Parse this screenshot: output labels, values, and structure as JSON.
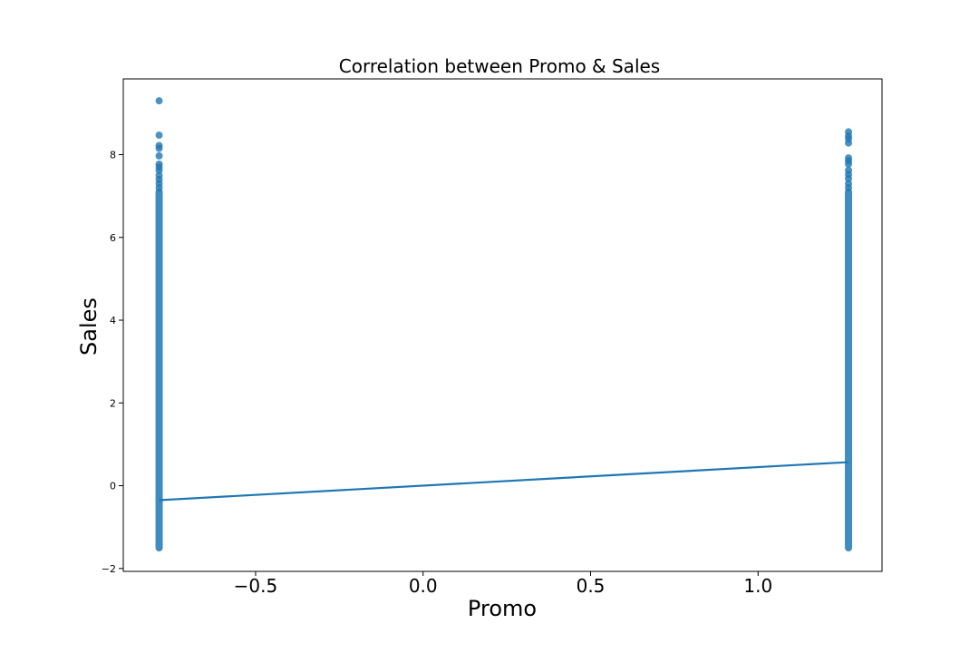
{
  "chart_data": {
    "type": "scatter",
    "title": "Correlation between Promo & Sales",
    "xlabel": "Promo",
    "ylabel": "Sales",
    "xlim": [
      -0.895,
      1.37
    ],
    "ylim": [
      -2.07,
      9.83
    ],
    "xticks": [
      {
        "value": -0.5,
        "label": "−0.5"
      },
      {
        "value": 0.0,
        "label": "0.0"
      },
      {
        "value": 0.5,
        "label": "0.5"
      },
      {
        "value": 1.0,
        "label": "1.0"
      }
    ],
    "yticks": [
      {
        "value": -2,
        "label": "−2"
      },
      {
        "value": 0,
        "label": "0"
      },
      {
        "value": 2,
        "label": "2"
      },
      {
        "value": 4,
        "label": "4"
      },
      {
        "value": 6,
        "label": "6"
      },
      {
        "value": 8,
        "label": "8"
      }
    ],
    "grid": false,
    "series": [
      {
        "color": "#1f77b4",
        "groups": [
          {
            "x": -0.788,
            "y_min": -1.5,
            "y_max": 7.1,
            "outliers": [
              9.3,
              8.47,
              8.22,
              8.15,
              7.97,
              7.77,
              7.7,
              7.62,
              7.5,
              7.4,
              7.3,
              7.2
            ]
          },
          {
            "x": 1.27,
            "y_min": -1.5,
            "y_max": 7.1,
            "outliers": [
              8.55,
              8.45,
              8.38,
              8.28,
              7.92,
              7.85,
              7.77,
              7.62,
              7.52,
              7.42,
              7.3,
              7.2
            ]
          }
        ]
      }
    ],
    "regression_line": {
      "x": [
        -0.788,
        1.27
      ],
      "y": [
        -0.35,
        0.57
      ],
      "color": "#1f77b4"
    }
  }
}
